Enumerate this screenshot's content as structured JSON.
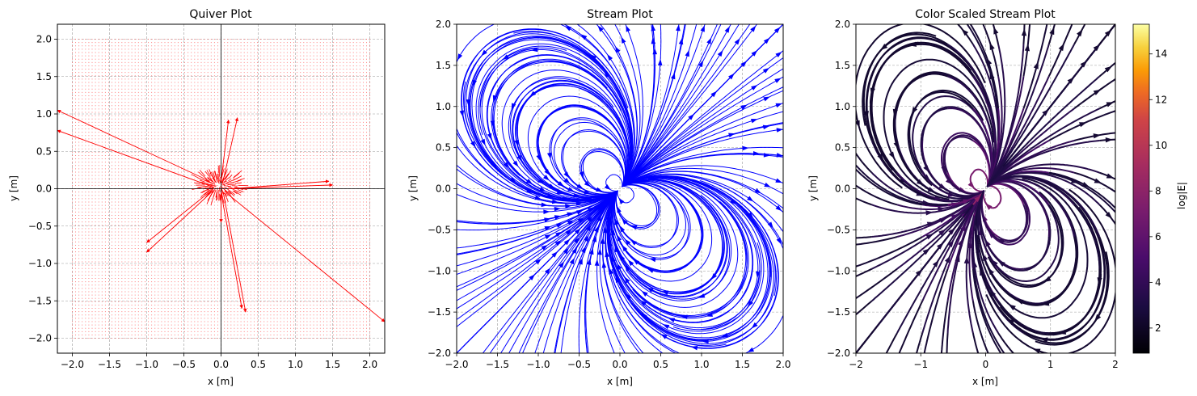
{
  "chart_data": [
    {
      "type": "quiver",
      "title": "Quiver Plot",
      "xlabel": "x [m]",
      "ylabel": "y [m]",
      "xlim": [
        -2.2,
        2.2
      ],
      "ylim": [
        -2.2,
        2.2
      ],
      "xticks": [
        -2.0,
        -1.5,
        -1.0,
        -0.5,
        0.0,
        0.5,
        1.0,
        1.5,
        2.0
      ],
      "yticks": [
        -2.0,
        -1.5,
        -1.0,
        -0.5,
        0.0,
        0.5,
        1.0,
        1.5,
        2.0
      ],
      "xtick_labels": [
        "−2.0",
        "−1.5",
        "−1.0",
        "−0.5",
        "0.0",
        "0.5",
        "1.0",
        "1.5",
        "2.0"
      ],
      "ytick_labels": [
        "−2.0",
        "−1.5",
        "−1.0",
        "−0.5",
        "0.0",
        "0.5",
        "1.0",
        "1.5",
        "2.0"
      ],
      "grid": true,
      "arrow_color": "#ff0000",
      "grid_extent": [
        -2.0,
        2.0
      ],
      "arrows": [
        {
          "x": -2.2,
          "y": 1.05,
          "dx": 2.05,
          "dy": -0.95
        },
        {
          "x": -2.2,
          "y": 0.78,
          "dx": 2.1,
          "dy": -0.76
        },
        {
          "x": 2.2,
          "y": -1.78,
          "dx": -2.1,
          "dy": 1.7
        },
        {
          "x": 1.45,
          "y": 0.1,
          "dx": -1.3,
          "dy": -0.1
        },
        {
          "x": 1.5,
          "y": 0.05,
          "dx": -1.4,
          "dy": -0.05
        },
        {
          "x": -1.0,
          "y": -0.72,
          "dx": 0.9,
          "dy": 0.72
        },
        {
          "x": -1.0,
          "y": -0.85,
          "dx": 0.9,
          "dy": 0.83
        },
        {
          "x": 0.28,
          "y": -1.6,
          "dx": -0.28,
          "dy": 1.55
        },
        {
          "x": 0.33,
          "y": -1.65,
          "dx": -0.3,
          "dy": 1.6
        },
        {
          "x": 0.1,
          "y": 0.92,
          "dx": -0.1,
          "dy": -0.82
        },
        {
          "x": 0.22,
          "y": 0.95,
          "dx": -0.2,
          "dy": -0.88
        },
        {
          "x": 0.0,
          "y": -0.45,
          "dx": 0.0,
          "dy": 0.4
        }
      ]
    },
    {
      "type": "streamplot",
      "title": "Stream Plot",
      "xlabel": "x [m]",
      "ylabel": "y [m]",
      "xlim": [
        -2.0,
        2.0
      ],
      "ylim": [
        -2.0,
        2.0
      ],
      "xticks": [
        -2.0,
        -1.5,
        -1.0,
        -0.5,
        0.0,
        0.5,
        1.0,
        1.5,
        2.0
      ],
      "yticks": [
        -2.0,
        -1.5,
        -1.0,
        -0.5,
        0.0,
        0.5,
        1.0,
        1.5,
        2.0
      ],
      "xtick_labels": [
        "−2.0",
        "−1.5",
        "−1.0",
        "−0.5",
        "0.0",
        "0.5",
        "1.0",
        "1.5",
        "2.0"
      ],
      "ytick_labels": [
        "−2.0",
        "−1.5",
        "−1.0",
        "−0.5",
        "0.0",
        "0.5",
        "1.0",
        "1.5",
        "2.0"
      ],
      "grid": true,
      "line_color": "#0000ff",
      "field": "dipole",
      "dipole_moment_direction": [
        1,
        1
      ]
    },
    {
      "type": "streamplot",
      "title": "Color Scaled Stream Plot",
      "xlabel": "x [m]",
      "ylabel": "y [m]",
      "xlim": [
        -2,
        2
      ],
      "ylim": [
        -2,
        2
      ],
      "xticks": [
        -2,
        -1,
        0,
        1,
        2
      ],
      "yticks": [
        -2.0,
        -1.5,
        -1.0,
        -0.5,
        0.0,
        0.5,
        1.0,
        1.5,
        2.0
      ],
      "xtick_labels": [
        "−2",
        "−1",
        "0",
        "1",
        "2"
      ],
      "ytick_labels": [
        "−2.0",
        "−1.5",
        "−1.0",
        "−0.5",
        "0.0",
        "0.5",
        "1.0",
        "1.5",
        "2.0"
      ],
      "grid": true,
      "colormap": "inferno",
      "field": "dipole",
      "colorbar": {
        "label": "log|E|",
        "range": [
          0.9,
          15.3
        ],
        "ticks": [
          2,
          4,
          6,
          8,
          10,
          12,
          14
        ],
        "tick_labels": [
          "2",
          "4",
          "6",
          "8",
          "10",
          "12",
          "14"
        ]
      }
    }
  ]
}
